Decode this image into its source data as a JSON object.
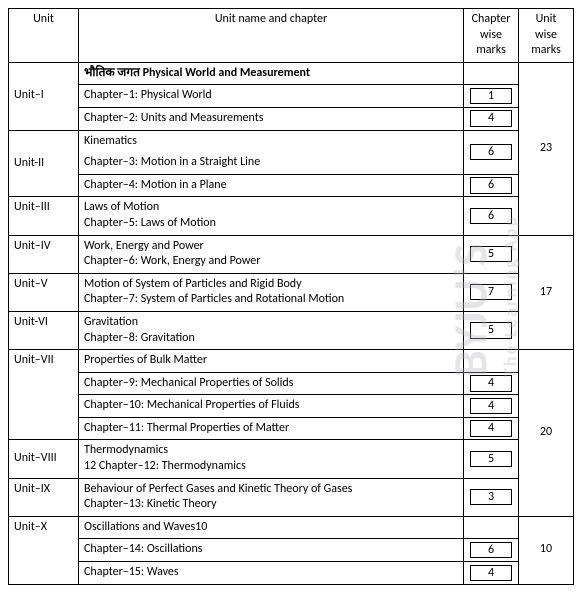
{
  "header": {
    "unit": "Unit",
    "name": "Unit name and chapter",
    "cmarks": "Chapter wise marks",
    "umarks": "Unit wise marks"
  },
  "units": [
    {
      "id": "Unit–I",
      "title": "भौतिक जगत  Physical World and  Measurement",
      "chapters": [
        {
          "name": "Chapter–1: Physical World",
          "marks": "1"
        },
        {
          "name": "Chapter–2: Units and Measurements",
          "marks": "4"
        }
      ]
    },
    {
      "id": "Unit-II",
      "title": "Kinematics",
      "chapters": [
        {
          "name": "Chapter–3: Motion in a Straight Line",
          "marks": "6"
        },
        {
          "name": "Chapter–4: Motion in a Plane",
          "marks": "6"
        }
      ]
    },
    {
      "id": "Unit–III",
      "title": "Laws of Motion\n Chapter–5: Laws of Motion",
      "marks": "6"
    },
    {
      "id": "Unit–IV",
      "title": "Work, Energy and Power\nChapter–6: Work, Energy and Power",
      "marks": "5"
    },
    {
      "id": "Unit–V",
      "title": "Motion of System of Particles and Rigid Body\nChapter–7: System of Particles and Rotational Motion",
      "marks": "7"
    },
    {
      "id": "Unit-VI",
      "title": "Gravitation\n Chapter–8: Gravitation",
      "marks": "5"
    },
    {
      "id": "Unit–VII",
      "title": "Properties of Bulk Matter",
      "chapters": [
        {
          "name": "Chapter–9: Mechanical Properties of Solids",
          "marks": "4"
        },
        {
          "name": "Chapter–10: Mechanical Properties of Fluids",
          "marks": "4"
        },
        {
          "name": "Chapter–11: Thermal Properties of Matter",
          "marks": "4"
        }
      ]
    },
    {
      "id": "Unit–VIII",
      "title": "Thermodynamics\n12 Chapter–12: Thermodynamics",
      "marks": "5"
    },
    {
      "id": "Unit–IX",
      "title": "Behaviour of Perfect Gases and Kinetic Theory of Gases\nChapter–13: Kinetic Theory",
      "marks": "3"
    },
    {
      "id": "Unit–X",
      "title": "Oscillations and Waves10",
      "chapters": [
        {
          "name": "Chapter–14: Oscillations",
          "marks": "6"
        },
        {
          "name": "Chapter–15: Waves",
          "marks": "4"
        }
      ]
    }
  ],
  "group_marks": {
    "g1": "23",
    "g2": "17",
    "g3": "20",
    "g4": "10"
  },
  "watermark": {
    "main": "BYJU'S",
    "sub": "The Learning App"
  }
}
